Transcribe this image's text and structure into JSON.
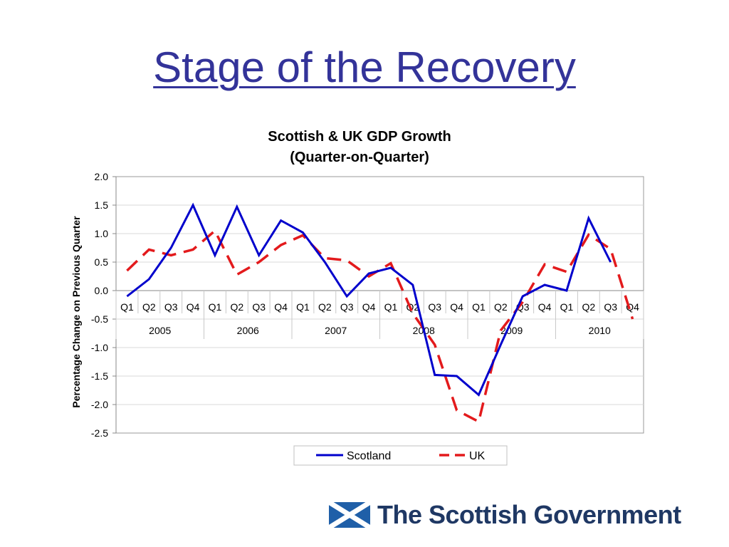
{
  "slide": {
    "title": "Stage of the Recovery"
  },
  "logo": {
    "text": "The Scottish Government",
    "flag_color": "#1f5fa8"
  },
  "chart_data": {
    "type": "line",
    "title": "Scottish & UK GDP Growth",
    "subtitle": "(Quarter-on-Quarter)",
    "ylabel": "Percentage Change on Previous Quarter",
    "xlabel": "",
    "ylim": [
      -2.5,
      2.0
    ],
    "yticks": [
      "2.0",
      "1.5",
      "1.0",
      "0.5",
      "0.0",
      "-0.5",
      "-1.0",
      "-1.5",
      "-2.0",
      "-2.5"
    ],
    "grid": true,
    "legend_position": "bottom",
    "categories": [
      "Q1",
      "Q2",
      "Q3",
      "Q4",
      "Q1",
      "Q2",
      "Q3",
      "Q4",
      "Q1",
      "Q2",
      "Q3",
      "Q4",
      "Q1",
      "Q2",
      "Q3",
      "Q4",
      "Q1",
      "Q2",
      "Q3",
      "Q4",
      "Q1",
      "Q2",
      "Q3",
      "Q4"
    ],
    "years": [
      "2005",
      "2006",
      "2007",
      "2008",
      "2009",
      "2010"
    ],
    "series": [
      {
        "name": "Scotland",
        "color": "#0000cc",
        "style": "solid",
        "values": [
          -0.1,
          0.2,
          0.75,
          1.5,
          0.62,
          1.47,
          0.62,
          1.23,
          1.02,
          0.5,
          -0.1,
          0.3,
          0.4,
          0.1,
          -1.48,
          -1.5,
          -1.83,
          -0.95,
          -0.1,
          0.1,
          0.0,
          1.27,
          0.5,
          null
        ]
      },
      {
        "name": "UK",
        "color": "#e31a1c",
        "style": "dashed",
        "values": [
          0.35,
          0.72,
          0.62,
          0.72,
          1.05,
          0.28,
          0.5,
          0.8,
          0.97,
          0.57,
          0.53,
          0.25,
          0.48,
          -0.4,
          -0.95,
          -2.1,
          -2.3,
          -0.7,
          -0.2,
          0.46,
          0.33,
          0.98,
          0.73,
          -0.5
        ]
      }
    ]
  }
}
